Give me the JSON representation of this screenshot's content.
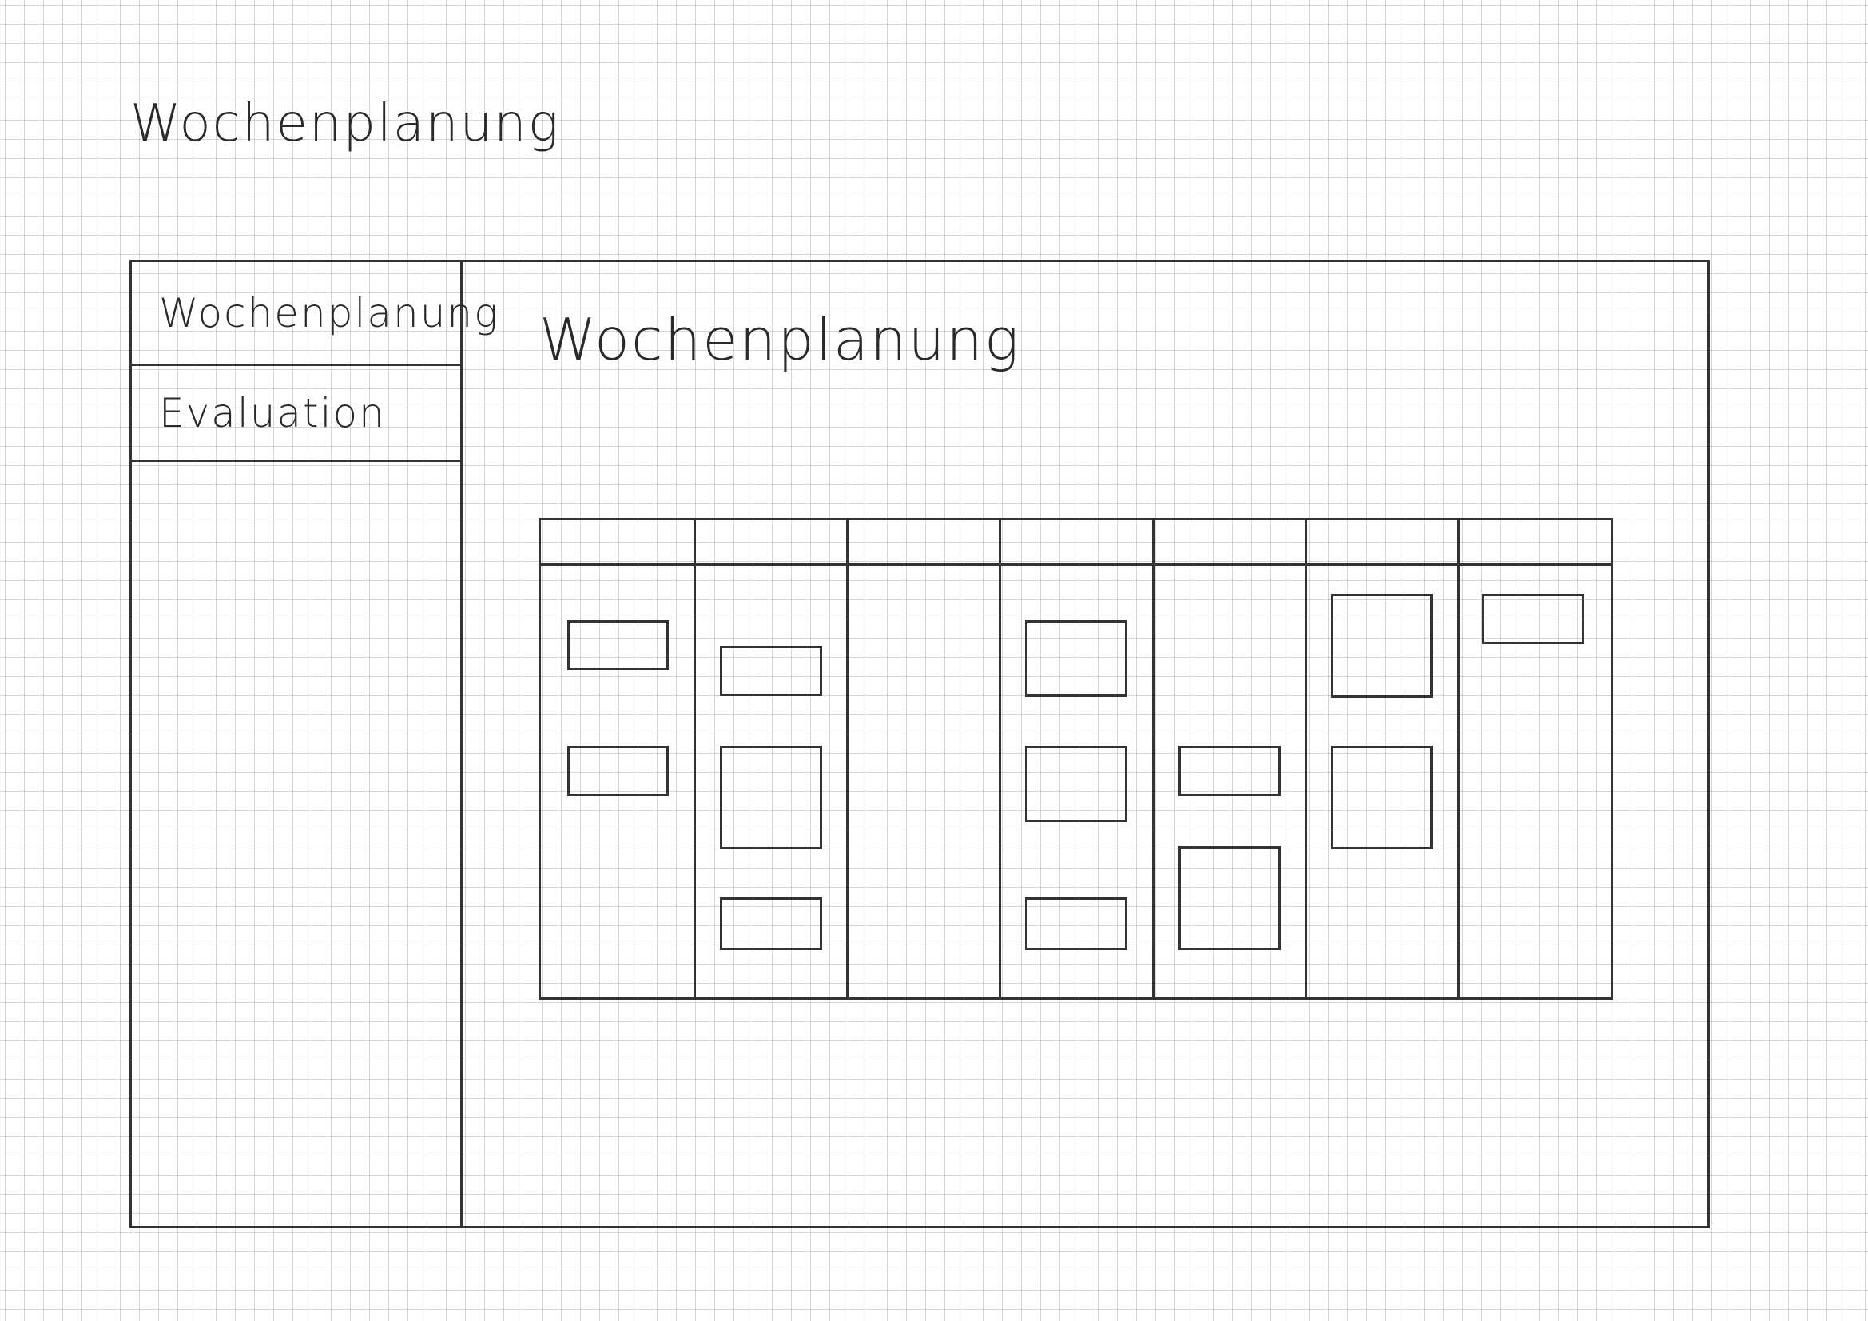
{
  "page": {
    "title": "Wochenplanung"
  },
  "sidebar": {
    "items": [
      {
        "label": "Wochenplanung"
      },
      {
        "label": "Evaluation"
      }
    ]
  },
  "main": {
    "title": "Wochenplanung"
  },
  "week_board": {
    "days": [
      {
        "header": "",
        "task_count": 2
      },
      {
        "header": "",
        "task_count": 3
      },
      {
        "header": "",
        "task_count": 0
      },
      {
        "header": "",
        "task_count": 3
      },
      {
        "header": "",
        "task_count": 2
      },
      {
        "header": "",
        "task_count": 2
      },
      {
        "header": "",
        "task_count": 1
      }
    ]
  }
}
